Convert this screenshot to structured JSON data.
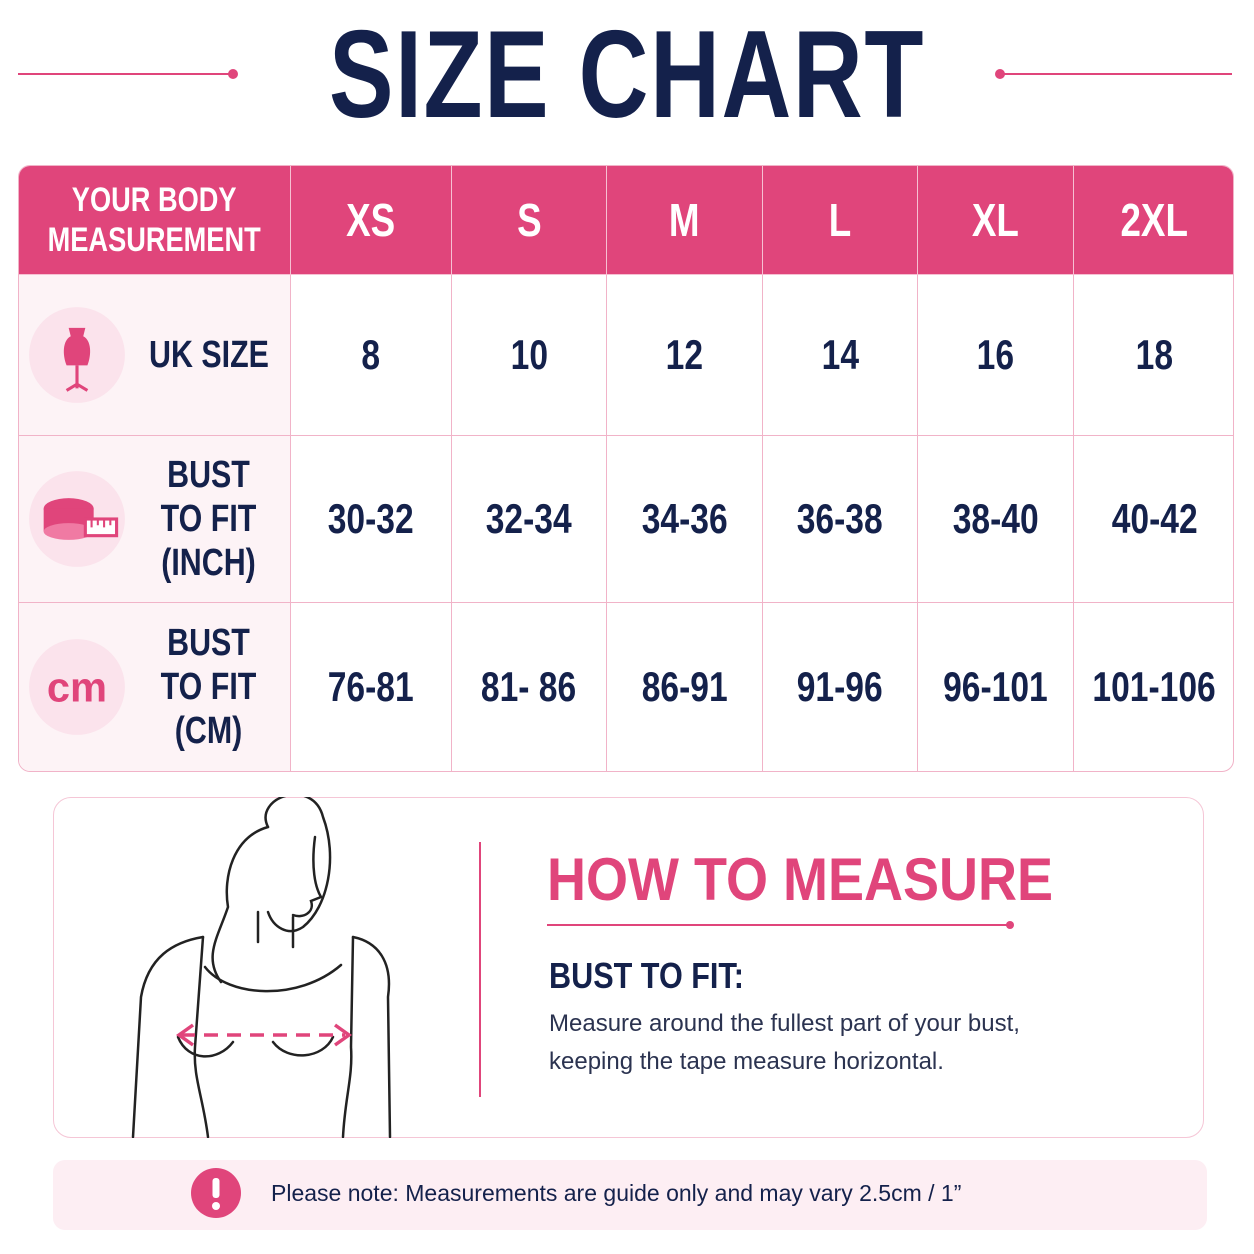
{
  "title": "SIZE CHART",
  "table": {
    "header": [
      "YOUR BODY MEASUREMENT",
      "XS",
      "S",
      "M",
      "L",
      "XL",
      "2XL"
    ],
    "rows": [
      [
        "UK SIZE",
        "8",
        "10",
        "12",
        "14",
        "16",
        "18"
      ],
      [
        "BUST TO FIT (INCH)",
        "30-32",
        "32-34",
        "34-36",
        "36-38",
        "38-40",
        "40-42"
      ],
      [
        "BUST TO FIT (CM)",
        "76-81",
        "81- 86",
        "86-91",
        "91-96",
        "96-101",
        "101-106"
      ]
    ],
    "cm_icon": "cm"
  },
  "how_to_measure": {
    "title": "HOW TO MEASURE",
    "subtitle": "BUST TO FIT:",
    "text": "Measure around the fullest part of your bust, keeping the tape measure horizontal."
  },
  "note": {
    "text": "Please note: Measurements are guide only and may vary 2.5cm / 1”"
  }
}
